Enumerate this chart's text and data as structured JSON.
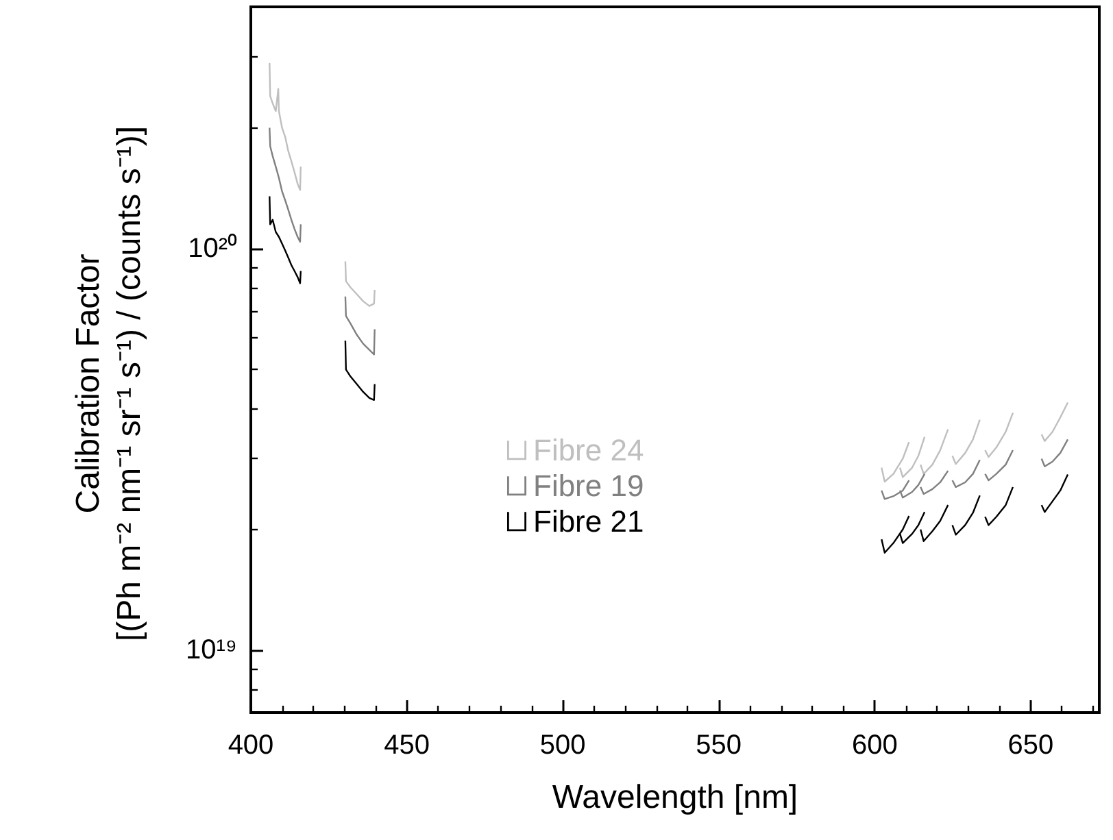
{
  "chart_data": {
    "type": "line",
    "xlabel": "Wavelength [nm]",
    "ylabel": "Calibration Factor\n[(Ph m⁻² nm⁻¹ sr⁻¹ s⁻¹) / (counts s⁻¹)]",
    "log": "y",
    "xlim": [
      400,
      672
    ],
    "xticks": [
      400,
      450,
      500,
      550,
      600,
      650
    ],
    "ylim": [
      7e+18,
      4e+20
    ],
    "yticks": [
      {
        "value": 1e+19,
        "label": "10¹⁹"
      },
      {
        "value": 1e+20,
        "label": "10²⁰"
      }
    ],
    "grid": false,
    "legend": "left",
    "marker": "none",
    "line_style": "solid",
    "series": [
      {
        "name": "Fibre 24",
        "color": "#bfbfbf",
        "x": [
          406,
          406.2,
          407,
          408,
          408.8,
          409,
          410,
          411,
          412,
          413,
          414,
          415,
          415.8,
          416
        ],
        "values": [
          2.9e+20,
          2.4e+20,
          2.3e+20,
          2.2e+20,
          2.5e+20,
          2.2e+20,
          2e+20,
          1.9e+20,
          1.75e+20,
          1.65e+20,
          1.55e+20,
          1.45e+20,
          1.4e+20,
          1.6e+20
        ]
      },
      {
        "name": "Fibre 19",
        "color": "#808080",
        "x": [
          406,
          406.2,
          407,
          408,
          409,
          410,
          411,
          412,
          413,
          414,
          415,
          415.8,
          416
        ],
        "values": [
          2e+20,
          1.8e+20,
          1.7e+20,
          1.6e+20,
          1.5e+20,
          1.39e+20,
          1.32e+20,
          1.25e+20,
          1.18e+20,
          1.12e+20,
          1.07e+20,
          1.04e+20,
          1.15e+20
        ]
      },
      {
        "name": "Fibre 21",
        "color": "#000000",
        "x": [
          406,
          406.2,
          407,
          408,
          409,
          410,
          411,
          412,
          413,
          414,
          415,
          415.8,
          416
        ],
        "values": [
          1.35e+20,
          1.15e+20,
          1.18e+20,
          1.1e+20,
          1.07e+20,
          1.03e+20,
          9.9e+19,
          9.5e+19,
          9.1e+19,
          8.8e+19,
          8.5e+19,
          8.2e+19,
          8.8e+19
        ]
      },
      {
        "color": "#bfbfbf",
        "x": [
          430.3,
          430.5,
          432,
          434,
          436,
          438,
          439.5,
          439.7
        ],
        "values": [
          9.3e+19,
          8.3e+19,
          8e+19,
          7.7e+19,
          7.4e+19,
          7.2e+19,
          7.3e+19,
          7.9e+19
        ]
      },
      {
        "color": "#808080",
        "x": [
          430.3,
          430.5,
          432,
          434,
          436,
          438,
          439.5,
          439.7
        ],
        "values": [
          7.6e+19,
          6.8e+19,
          6.5e+19,
          6.1e+19,
          5.8e+19,
          5.6e+19,
          5.45e+19,
          6.3e+19
        ]
      },
      {
        "color": "#000000",
        "x": [
          430.3,
          430.5,
          432,
          434,
          436,
          438,
          439.5,
          439.7
        ],
        "values": [
          5.9e+19,
          5e+19,
          4.8e+19,
          4.6e+19,
          4.4e+19,
          4.25e+19,
          4.2e+19,
          4.6e+19
        ]
      },
      {
        "color": "#bfbfbf",
        "x": [
          602.2,
          603.2,
          606,
          609,
          611
        ],
        "values": [
          2.85e+19,
          2.63e+19,
          2.75e+19,
          3e+19,
          3.3e+19
        ]
      },
      {
        "color": "#bfbfbf",
        "x": [
          608.1,
          609,
          612,
          614,
          616
        ],
        "values": [
          2.85e+19,
          2.7e+19,
          2.85e+19,
          3.05e+19,
          3.4e+19
        ]
      },
      {
        "color": "#bfbfbf",
        "x": [
          614.7,
          615.7,
          618.5,
          621,
          623.5
        ],
        "values": [
          2.9e+19,
          2.75e+19,
          2.9e+19,
          3.15e+19,
          3.55e+19
        ]
      },
      {
        "color": "#bfbfbf",
        "x": [
          624.9,
          626,
          629,
          631.5,
          633.7
        ],
        "values": [
          3.05e+19,
          2.91e+19,
          3.1e+19,
          3.35e+19,
          3.75e+19
        ]
      },
      {
        "color": "#bfbfbf",
        "x": [
          635.4,
          636.5,
          639,
          642,
          644.3
        ],
        "values": [
          3.15e+19,
          3.03e+19,
          3.2e+19,
          3.5e+19,
          3.9e+19
        ]
      },
      {
        "color": "#bfbfbf",
        "x": [
          653.5,
          654.5,
          657,
          659.5,
          661.9
        ],
        "values": [
          3.45e+19,
          3.32e+19,
          3.5e+19,
          3.8e+19,
          4.14e+19
        ]
      },
      {
        "color": "#808080",
        "x": [
          602.2,
          603.2,
          606,
          609,
          611
        ],
        "values": [
          2.5e+19,
          2.38e+19,
          2.42e+19,
          2.5e+19,
          2.65e+19
        ]
      },
      {
        "color": "#808080",
        "x": [
          608.1,
          609,
          612,
          614,
          616
        ],
        "values": [
          2.5e+19,
          2.4e+19,
          2.48e+19,
          2.58e+19,
          2.75e+19
        ]
      },
      {
        "color": "#808080",
        "x": [
          614.7,
          615.7,
          618.5,
          621,
          623.5
        ],
        "values": [
          2.55e+19,
          2.45e+19,
          2.52e+19,
          2.62e+19,
          2.8e+19
        ]
      },
      {
        "color": "#808080",
        "x": [
          624.9,
          626,
          629,
          631.5,
          633.7
        ],
        "values": [
          2.65e+19,
          2.55e+19,
          2.62e+19,
          2.75e+19,
          2.98e+19
        ]
      },
      {
        "color": "#808080",
        "x": [
          635.4,
          636.5,
          639,
          642,
          644.3
        ],
        "values": [
          2.75e+19,
          2.65e+19,
          2.75e+19,
          2.9e+19,
          3.15e+19
        ]
      },
      {
        "color": "#808080",
        "x": [
          653.5,
          654.5,
          657,
          659.5,
          661.9
        ],
        "values": [
          3e+19,
          2.87e+19,
          2.95e+19,
          3.1e+19,
          3.35e+19
        ]
      },
      {
        "color": "#000000",
        "x": [
          602.2,
          603.2,
          606,
          609,
          611
        ],
        "values": [
          1.89e+19,
          1.75e+19,
          1.85e+19,
          2e+19,
          2.16e+19
        ]
      },
      {
        "color": "#000000",
        "x": [
          608.1,
          609,
          612,
          614,
          616
        ],
        "values": [
          1.95e+19,
          1.85e+19,
          1.95e+19,
          2.05e+19,
          2.21e+19
        ]
      },
      {
        "color": "#000000",
        "x": [
          614.7,
          615.7,
          618.5,
          621,
          623.5
        ],
        "values": [
          2e+19,
          1.87e+19,
          1.98e+19,
          2.1e+19,
          2.3e+19
        ]
      },
      {
        "color": "#000000",
        "x": [
          624.9,
          626,
          629,
          631.5,
          633.7
        ],
        "values": [
          2.05e+19,
          1.94e+19,
          2.05e+19,
          2.2e+19,
          2.43e+19
        ]
      },
      {
        "color": "#000000",
        "x": [
          635.4,
          636.5,
          639,
          642,
          644.3
        ],
        "values": [
          2.15e+19,
          2.05e+19,
          2.15e+19,
          2.3e+19,
          2.55e+19
        ]
      },
      {
        "color": "#000000",
        "x": [
          653.5,
          654.5,
          657,
          659.5,
          661.9
        ],
        "values": [
          2.3e+19,
          2.21e+19,
          2.35e+19,
          2.5e+19,
          2.74e+19
        ]
      }
    ]
  }
}
